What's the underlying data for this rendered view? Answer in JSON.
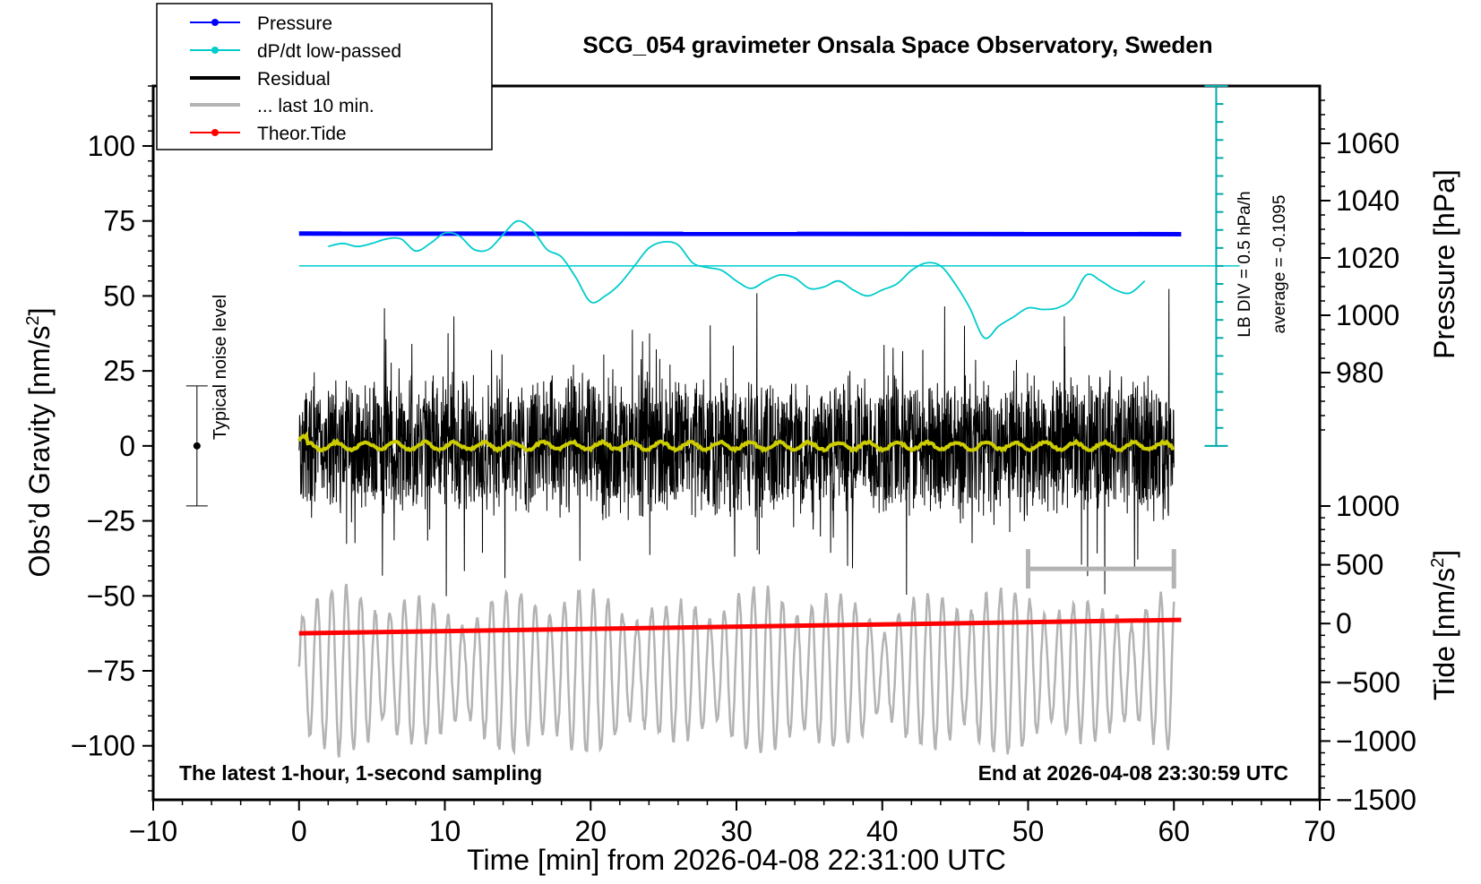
{
  "chart_data": {
    "type": "line",
    "title": "SCG_054 gravimeter Onsala Space Observatory, Sweden",
    "xlabel": "Time [min] from 2026-04-08 22:31:00 UTC",
    "ylabel_left": "Obs’d Gravity [nm/s",
    "ylabel_left_sup": "2",
    "ylabel_left_close": "]",
    "ylabel_right_top": "Pressure [hPa]",
    "ylabel_right_bottom": "Tide [nm/s",
    "ylabel_right_bottom_sup": "2",
    "ylabel_right_bottom_close": "]",
    "xlim": [
      -10,
      70
    ],
    "ylim": [
      -118,
      120
    ],
    "x_ticks": [
      "−10",
      "0",
      "10",
      "20",
      "30",
      "40",
      "50",
      "60",
      "70"
    ],
    "y_ticks": [
      "−100",
      "−75",
      "−50",
      "−25",
      "0",
      "25",
      "50",
      "75",
      "100"
    ],
    "pressure_ticks": [
      "980",
      "1000",
      "1020",
      "1040",
      "1060"
    ],
    "pressure_lim": [
      955,
      1080
    ],
    "tide_ticks": [
      "−1500",
      "−1000",
      "−500",
      "0",
      "500",
      "1000"
    ],
    "tide_lim": [
      -1500,
      1000
    ],
    "annotations": {
      "bottom_left": "The latest 1-hour, 1-second sampling",
      "bottom_right": "End at 2026-04-08 23:30:59 UTC",
      "noise_label": "Typical noise level",
      "lb_div": "LB DIV = 0.5 hPa/h",
      "average": "average = -0.1095"
    },
    "legend": [
      {
        "label": "Pressure",
        "color": "#0000ff",
        "style": "line-dot"
      },
      {
        "label": "dP/dt low-passed",
        "color": "#00cccc",
        "style": "line-dot"
      },
      {
        "label": "Residual",
        "color": "#000000",
        "style": "thick"
      },
      {
        "label": "... last 10 min.",
        "color": "#b3b3b3",
        "style": "thick"
      },
      {
        "label": "Theor.Tide",
        "color": "#ff0000",
        "style": "line-dot"
      }
    ],
    "series": [
      {
        "name": "Pressure",
        "color": "#0000ff",
        "axis": "pressure",
        "x": [
          0,
          60.5
        ],
        "values": [
          1028.5,
          1028.3
        ]
      },
      {
        "name": "Theor.Tide",
        "color": "#ff0000",
        "axis": "gravity",
        "x": [
          0,
          60.5
        ],
        "values": [
          -62.5,
          -58.0
        ]
      },
      {
        "name": "dP/dt low-passed",
        "color": "#00cccc",
        "axis": "gravity",
        "x": [
          2,
          3,
          4,
          5,
          6,
          7,
          8,
          9,
          10,
          11,
          12,
          13,
          14,
          15,
          16,
          17,
          18,
          19,
          20,
          21,
          22,
          23,
          24,
          25,
          26,
          27,
          28,
          29,
          30,
          31,
          32,
          33,
          34,
          35,
          36,
          37,
          38,
          39,
          40,
          41,
          42,
          43,
          44,
          45,
          46,
          47,
          48,
          49,
          50,
          51,
          52,
          53,
          54,
          55,
          56,
          57,
          58
        ],
        "values": [
          66.5,
          67.5,
          66.5,
          67.5,
          69,
          69,
          65,
          67.5,
          71,
          70,
          65.5,
          65.5,
          70.5,
          75,
          72,
          65.5,
          63,
          56,
          48,
          50,
          54,
          60,
          66,
          68,
          67,
          61,
          59.5,
          58.5,
          55,
          52.5,
          55,
          57,
          56,
          52.5,
          53,
          55,
          52,
          50,
          52,
          54,
          58.5,
          61,
          60,
          54,
          46,
          36,
          40,
          43,
          46,
          45.5,
          46,
          49,
          57,
          55,
          52,
          51,
          55
        ]
      },
      {
        "name": "Residual",
        "color": "#000000",
        "axis": "gravity",
        "x": [
          0,
          60
        ],
        "values": [
          0,
          0
        ]
      },
      {
        "name": "Residual low-passed",
        "color": "#cccc00",
        "axis": "gravity",
        "x": [
          0,
          60
        ],
        "values": [
          0.5,
          0
        ]
      },
      {
        "name": "Observed tide",
        "color": "#b3b3b3",
        "axis": "gravity",
        "x": [
          0,
          60
        ],
        "values": [
          -75,
          -75
        ]
      }
    ],
    "noise_bar": {
      "x": -7,
      "center": 0,
      "low": -20,
      "high": 20
    },
    "last_10_min_bar": {
      "x_start": 50,
      "x_end": 60,
      "y": -41
    },
    "reference_line": {
      "axis": "gravity",
      "value": 60
    },
    "lb_div_scale": {
      "x": 62.9,
      "y_from": 0,
      "y_to": 120,
      "tick_step": 6
    }
  }
}
